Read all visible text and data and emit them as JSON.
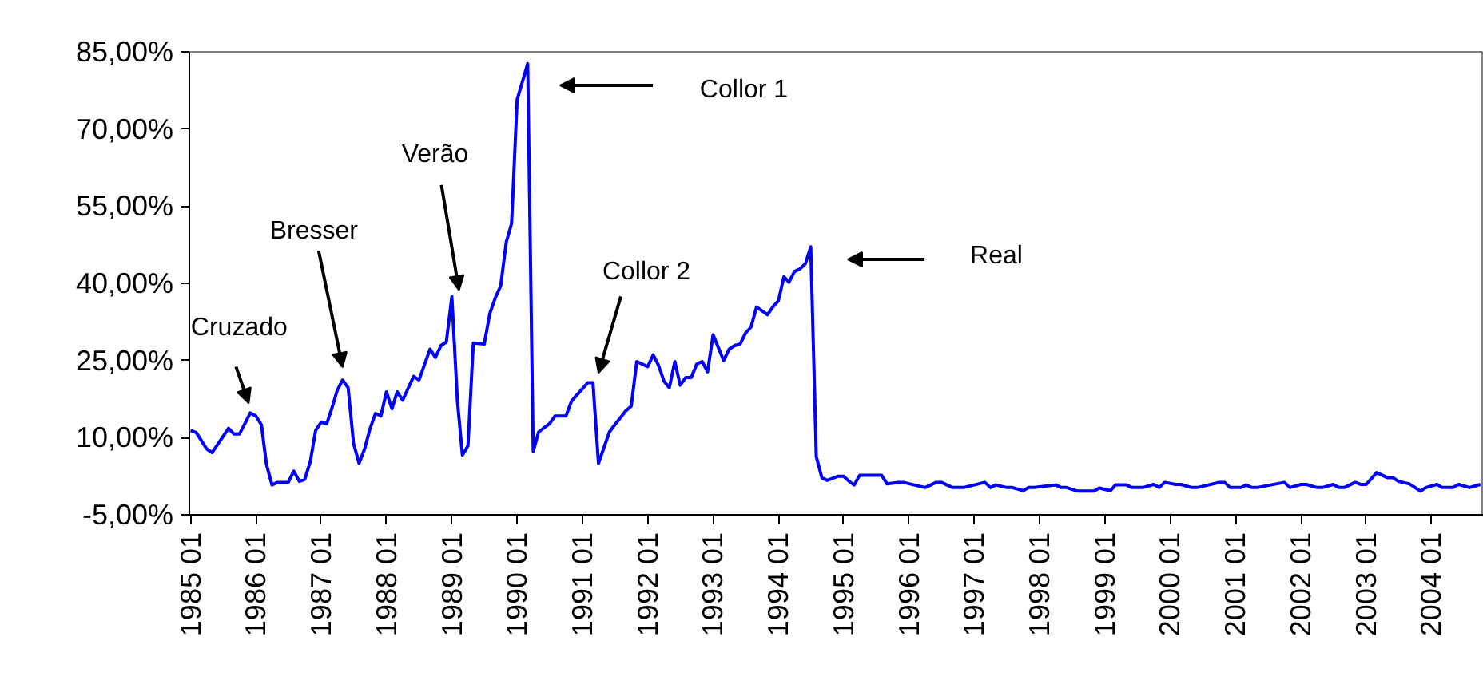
{
  "chart_data": {
    "type": "line",
    "xlim": [
      "1984-12-25",
      "2004-10-20"
    ],
    "ylim": [
      -5,
      85
    ],
    "yticks": [
      {
        "value": -5,
        "label": "-5,00%"
      },
      {
        "value": 10,
        "label": "10,00%"
      },
      {
        "value": 25,
        "label": "25,00%"
      },
      {
        "value": 40,
        "label": "40,00%"
      },
      {
        "value": 55,
        "label": "55,00%"
      },
      {
        "value": 70,
        "label": "70,00%"
      },
      {
        "value": 85,
        "label": "85,00%"
      }
    ],
    "xticks": [
      {
        "value": "1985-01",
        "label": "1985 01"
      },
      {
        "value": "1986-01",
        "label": "1986 01"
      },
      {
        "value": "1987-01",
        "label": "1987 01"
      },
      {
        "value": "1988-01",
        "label": "1988 01"
      },
      {
        "value": "1989-01",
        "label": "1989 01"
      },
      {
        "value": "1990-01",
        "label": "1990 01"
      },
      {
        "value": "1991-01",
        "label": "1991 01"
      },
      {
        "value": "1992-01",
        "label": "1992 01"
      },
      {
        "value": "1993-01",
        "label": "1993 01"
      },
      {
        "value": "1994-01",
        "label": "1994 01"
      },
      {
        "value": "1995-01",
        "label": "1995 01"
      },
      {
        "value": "1996-01",
        "label": "1996 01"
      },
      {
        "value": "1997-01",
        "label": "1997 01"
      },
      {
        "value": "1998-01",
        "label": "1998 01"
      },
      {
        "value": "1999-01",
        "label": "1999 01"
      },
      {
        "value": "2000-01",
        "label": "2000 01"
      },
      {
        "value": "2001-01",
        "label": "2001 01"
      },
      {
        "value": "2002-01",
        "label": "2002 01"
      },
      {
        "value": "2003-01",
        "label": "2003 01"
      },
      {
        "value": "2004-01",
        "label": "2004 01"
      }
    ],
    "grid": false,
    "marker": "none",
    "line_style": "solid",
    "annotations": [
      {
        "text": "Cruzado",
        "x": "1985-12",
        "y": 14.8
      },
      {
        "text": "Bresser",
        "x": "1987-05",
        "y": 21.2
      },
      {
        "text": "Verão",
        "x": "1989-02",
        "y": 37.4
      },
      "Collor 1",
      {
        "text": "Collor 2",
        "x": "1991-04",
        "y": 20.7
      },
      "Real"
    ],
    "series": [
      {
        "color": "#0000ff",
        "x": [
          "1985-01",
          "1985-02",
          "1985-04",
          "1985-05",
          "1985-08",
          "1985-09",
          "1985-10",
          "1985-12",
          "1986-01",
          "1986-02",
          "1986-03",
          "1986-04",
          "1986-05",
          "1986-07",
          "1986-08",
          "1986-09",
          "1986-10",
          "1986-11",
          "1986-12",
          "1987-01",
          "1987-02",
          "1987-03",
          "1987-04",
          "1987-05",
          "1987-06",
          "1987-07",
          "1987-08",
          "1987-09",
          "1987-10",
          "1987-11",
          "1987-12",
          "1988-01",
          "1988-02",
          "1988-03",
          "1988-04",
          "1988-06",
          "1988-07",
          "1988-09",
          "1988-10",
          "1988-11",
          "1988-12",
          "1989-01",
          "1989-02",
          "1989-03",
          "1989-04",
          "1989-05",
          "1989-07",
          "1989-08",
          "1989-09",
          "1989-10",
          "1989-11",
          "1989-12",
          "1990-01",
          "1990-03",
          "1990-04",
          "1990-05",
          "1990-07",
          "1990-08",
          "1990-10",
          "1990-11",
          "1990-12",
          "1991-02",
          "1991-03",
          "1991-04",
          "1991-06",
          "1991-07",
          "1991-09",
          "1991-10",
          "1991-11",
          "1992-01",
          "1992-02",
          "1992-03",
          "1992-04",
          "1992-05",
          "1992-06",
          "1992-07",
          "1992-08",
          "1992-09",
          "1992-10",
          "1992-11",
          "1992-12",
          "1993-01",
          "1993-03",
          "1993-04",
          "1993-05",
          "1993-06",
          "1993-07",
          "1993-08",
          "1993-09",
          "1993-11",
          "1993-12",
          "1994-01",
          "1994-02",
          "1994-03",
          "1994-04",
          "1994-05",
          "1994-06",
          "1994-07",
          "1994-08",
          "1994-09",
          "1994-10",
          "1994-12",
          "1995-01",
          "1995-02",
          "1995-03",
          "1995-04",
          "1995-06",
          "1995-08",
          "1995-09",
          "1995-11",
          "1995-12",
          "1996-04",
          "1996-06",
          "1996-07",
          "1996-09",
          "1996-11",
          "1997-03",
          "1997-04",
          "1997-05",
          "1997-07",
          "1997-08",
          "1997-10",
          "1997-11",
          "1997-12",
          "1998-04",
          "1998-05",
          "1998-06",
          "1998-08",
          "1998-11",
          "1998-12",
          "1999-02",
          "1999-03",
          "1999-05",
          "1999-06",
          "1999-08",
          "1999-10",
          "1999-11",
          "1999-12",
          "2000-02",
          "2000-03",
          "2000-05",
          "2000-06",
          "2000-10",
          "2000-11",
          "2000-12",
          "2001-02",
          "2001-03",
          "2001-04",
          "2001-05",
          "2001-10",
          "2001-11",
          "2002-01",
          "2002-02",
          "2002-04",
          "2002-05",
          "2002-07",
          "2002-08",
          "2002-09",
          "2002-11",
          "2002-12",
          "2003-01",
          "2003-03",
          "2003-05",
          "2003-06",
          "2003-07",
          "2003-09",
          "2003-11",
          "2003-12",
          "2004-02",
          "2004-03",
          "2004-05",
          "2004-06",
          "2004-08",
          "2004-10"
        ],
        "values": [
          11.4,
          11.0,
          7.8,
          7.1,
          11.8,
          10.7,
          10.7,
          14.8,
          14.2,
          12.5,
          4.8,
          0.8,
          1.3,
          1.3,
          3.5,
          1.5,
          1.9,
          5.3,
          11.4,
          13.0,
          12.7,
          15.6,
          19.2,
          21.2,
          19.7,
          8.9,
          5.0,
          7.8,
          11.7,
          14.7,
          14.2,
          18.9,
          15.6,
          18.9,
          17.3,
          21.9,
          21.2,
          27.2,
          25.6,
          27.9,
          28.6,
          37.4,
          17.1,
          6.6,
          8.4,
          28.4,
          28.2,
          34.1,
          37.2,
          39.5,
          48.0,
          51.6,
          75.7,
          82.7,
          7.3,
          11.1,
          12.7,
          14.2,
          14.2,
          17.1,
          18.3,
          20.7,
          20.7,
          5.0,
          11.1,
          12.5,
          15.2,
          16.1,
          24.8,
          23.8,
          26.1,
          24.1,
          21.0,
          19.7,
          24.8,
          20.2,
          21.7,
          21.7,
          24.3,
          24.8,
          22.8,
          30.0,
          25.0,
          27.2,
          27.9,
          28.2,
          30.3,
          31.5,
          35.4,
          33.9,
          35.4,
          36.6,
          41.3,
          40.2,
          42.3,
          42.8,
          43.8,
          47.1,
          6.3,
          2.2,
          1.7,
          2.5,
          2.5,
          1.5,
          0.8,
          2.7,
          2.7,
          2.7,
          1.0,
          1.3,
          1.3,
          0.3,
          1.3,
          1.3,
          0.3,
          0.3,
          1.3,
          0.3,
          0.8,
          0.3,
          0.3,
          -0.3,
          0.3,
          0.3,
          0.8,
          0.3,
          0.3,
          -0.4,
          -0.4,
          0.2,
          -0.3,
          0.8,
          0.8,
          0.3,
          0.3,
          0.9,
          0.3,
          1.3,
          0.9,
          0.9,
          0.3,
          0.3,
          1.3,
          1.3,
          0.3,
          0.3,
          0.8,
          0.3,
          0.3,
          1.3,
          0.3,
          0.9,
          0.9,
          0.3,
          0.3,
          0.9,
          0.3,
          0.3,
          1.3,
          0.9,
          0.9,
          3.2,
          2.2,
          2.2,
          1.5,
          1.0,
          -0.4,
          0.3,
          0.9,
          0.3,
          0.3,
          0.9,
          0.3,
          0.9
        ]
      }
    ]
  }
}
